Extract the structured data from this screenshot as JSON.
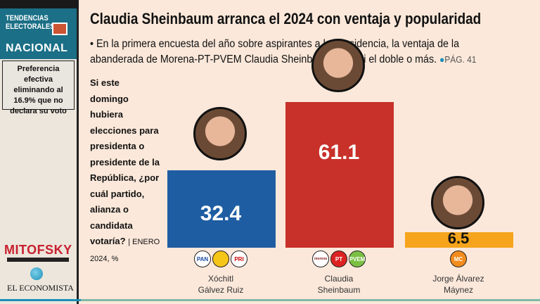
{
  "sidebar": {
    "section_line1": "TENDENCIAS",
    "section_line2": "ELECTORALES",
    "section_line3": "NACIONAL",
    "note": "Preferencia efectiva eliminando al 16.9% que no declara su voto",
    "pollster": "MITOFSKY",
    "publisher": "EL ECONOMISTA"
  },
  "header": {
    "title": "Claudia Sheinbaum arranca el 2024 con ventaja y popularidad",
    "lead": "• En la primera encuesta del año sobre aspirantes a la Presidencia, la ventaja de la abanderada de Morena-PT-PVEM Claudia Sheinbaum es casi el doble o más.",
    "page_ref": "PÁG. 41"
  },
  "question": {
    "text": "Si este domingo hubiera elecciones para presidenta o presidente de la República, ¿por cuál partido, alianza o candidata votaría?",
    "source": "| ENERO 2024, %"
  },
  "chart_data": {
    "type": "bar",
    "title": "Si este domingo hubiera elecciones para presidenta o presidente de la República, ¿por cuál partido, alianza o candidata votaría?",
    "categories": [
      "Xóchitl Gálvez Ruiz",
      "Claudia Sheinbaum",
      "Jorge Álvarez Máynez"
    ],
    "values": [
      32.4,
      61.1,
      6.5
    ],
    "value_labels": [
      "32.4",
      "61.1",
      "6.5"
    ],
    "colors": [
      "#1f5da3",
      "#c8302a",
      "#f6a41c"
    ],
    "ylim": [
      0,
      61.1
    ],
    "unit": "%"
  },
  "candidates": [
    {
      "line1": "Xóchitl",
      "line2": "Gálvez Ruiz",
      "parties": [
        "PAN",
        "PRD",
        "PRI"
      ]
    },
    {
      "line1": "Claudia",
      "line2": "Sheinbaum",
      "parties": [
        "morena",
        "PT",
        "PVEM"
      ]
    },
    {
      "line1": "Jorge Álvarez",
      "line2": "Máynez",
      "parties": [
        "MC"
      ]
    }
  ]
}
